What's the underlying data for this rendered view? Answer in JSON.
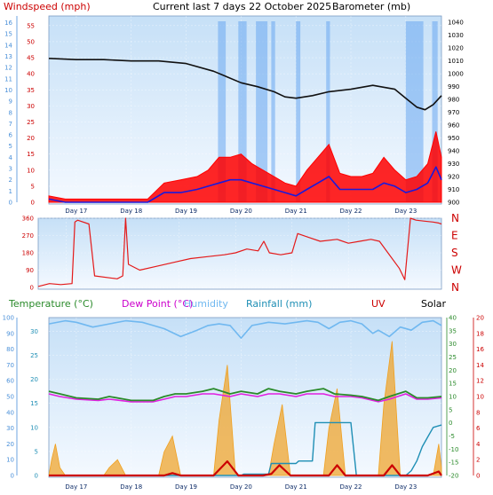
{
  "header": {
    "windspeed_label": "Windspeed (mph)",
    "title": "Current last 7 days 22 October 2025",
    "barometer_label": "Barometer (mb)"
  },
  "legend2": {
    "temperature": "Temperature (°C)",
    "dew_point": "Dew Point (°C)",
    "humidity": "Humidity",
    "rainfall": "Rainfall (mm)",
    "uv": "UV",
    "solar": "Solar"
  },
  "colors": {
    "wind_gust": "#ff0000",
    "wind_avg": "#1a1adc",
    "barometer": "#111111",
    "wind_dir": "#e41a1a",
    "temperature": "#2a8a2a",
    "dew_point": "#e020e0",
    "humidity": "#70b8f0",
    "rainfall": "#1f8fb5",
    "uv": "#cc0000",
    "solar": "#f0a020",
    "sun_bars": "#6aa8f0",
    "panel_top": "#c6e0f7",
    "panel_bottom": "#f4f9ff"
  },
  "chart_data": [
    {
      "type": "line",
      "name_hint": "wind-baro",
      "x_tick_labels": [
        "Day 17",
        "Day 18",
        "Day 19",
        "Day 20",
        "Day 21",
        "Day 22",
        "Day 23"
      ],
      "left_axis_mph_ticks": [
        "0",
        "5",
        "10",
        "15",
        "20",
        "25",
        "30",
        "35",
        "40",
        "45",
        "50",
        "55"
      ],
      "left_outer_ticks": [
        "0",
        "1",
        "2",
        "3",
        "4",
        "5",
        "6",
        "7",
        "8",
        "9",
        "10",
        "11",
        "12",
        "13",
        "14",
        "15",
        "16"
      ],
      "right_axis_mb_ticks": [
        "900",
        "910",
        "920",
        "930",
        "940",
        "950",
        "960",
        "970",
        "980",
        "990",
        "1000",
        "1010",
        "1020",
        "1030",
        "1040"
      ],
      "ylim_mph": [
        0,
        58
      ],
      "ylim_mb": [
        900,
        1045
      ],
      "x_days": [
        16.5,
        23.65
      ],
      "series": [
        {
          "key": "barometer",
          "unit": "mb",
          "x": [
            16.5,
            17.0,
            17.5,
            18.0,
            18.5,
            19.0,
            19.5,
            20.0,
            20.3,
            20.6,
            20.8,
            21.0,
            21.3,
            21.6,
            22.0,
            22.4,
            22.8,
            23.0,
            23.2,
            23.35,
            23.5,
            23.65
          ],
          "values": [
            1012,
            1011,
            1011,
            1010,
            1010,
            1008,
            1002,
            993,
            990,
            986,
            982,
            981,
            983,
            986,
            988,
            991,
            988,
            981,
            974,
            972,
            976,
            983
          ]
        },
        {
          "key": "wind_gust",
          "unit": "mph",
          "x": [
            16.5,
            16.8,
            17.0,
            17.5,
            18.0,
            18.3,
            18.6,
            18.9,
            19.2,
            19.4,
            19.6,
            19.8,
            20.0,
            20.2,
            20.4,
            20.6,
            20.8,
            21.0,
            21.2,
            21.4,
            21.6,
            21.8,
            22.0,
            22.2,
            22.4,
            22.6,
            22.8,
            23.0,
            23.2,
            23.4,
            23.55,
            23.65
          ],
          "values": [
            2,
            1,
            1,
            1,
            1,
            1,
            6,
            7,
            8,
            10,
            14,
            14,
            15,
            12,
            10,
            8,
            6,
            5,
            10,
            14,
            18,
            9,
            8,
            8,
            9,
            14,
            10,
            7,
            8,
            12,
            22,
            14
          ]
        },
        {
          "key": "wind_avg",
          "unit": "mph",
          "x": [
            16.5,
            16.8,
            17.0,
            17.5,
            18.0,
            18.3,
            18.6,
            18.9,
            19.2,
            19.4,
            19.6,
            19.8,
            20.0,
            20.2,
            20.4,
            20.6,
            20.8,
            21.0,
            21.2,
            21.4,
            21.6,
            21.8,
            22.0,
            22.2,
            22.4,
            22.6,
            22.8,
            23.0,
            23.2,
            23.4,
            23.55,
            23.65
          ],
          "values": [
            1,
            0,
            0,
            0,
            0,
            0,
            3,
            3,
            4,
            5,
            6,
            7,
            7,
            6,
            5,
            4,
            3,
            2,
            4,
            6,
            8,
            4,
            4,
            4,
            4,
            6,
            5,
            3,
            4,
            6,
            11,
            7
          ]
        }
      ],
      "sunshine_periods_days": [
        [
          19.58,
          19.72
        ],
        [
          19.95,
          20.1
        ],
        [
          20.27,
          20.48
        ],
        [
          20.55,
          20.62
        ],
        [
          21.0,
          21.08
        ],
        [
          21.55,
          21.62
        ],
        [
          23.0,
          23.32
        ],
        [
          23.48,
          23.58
        ]
      ]
    },
    {
      "type": "scatter",
      "name_hint": "wind-direction",
      "left_ticks": [
        "0",
        "90",
        "180",
        "270",
        "360"
      ],
      "right_labels": [
        "N",
        "W",
        "S",
        "E",
        "N"
      ],
      "ylim": [
        0,
        360
      ],
      "x_days": [
        16.5,
        23.65
      ],
      "x": [
        16.5,
        16.7,
        16.9,
        17.1,
        17.15,
        17.2,
        17.4,
        17.5,
        17.9,
        18.0,
        18.05,
        18.1,
        18.3,
        18.6,
        18.9,
        19.2,
        19.5,
        19.8,
        20.0,
        20.2,
        20.4,
        20.5,
        20.6,
        20.8,
        21.0,
        21.1,
        21.3,
        21.5,
        21.8,
        22.0,
        22.2,
        22.4,
        22.55,
        22.7,
        22.9,
        23.0,
        23.1,
        23.2,
        23.35,
        23.5,
        23.6,
        23.65
      ],
      "values": [
        5,
        20,
        15,
        20,
        340,
        350,
        330,
        60,
        45,
        60,
        360,
        120,
        90,
        110,
        130,
        150,
        160,
        170,
        180,
        200,
        190,
        240,
        180,
        170,
        180,
        280,
        260,
        240,
        250,
        230,
        240,
        250,
        240,
        180,
        100,
        40,
        360,
        350,
        345,
        340,
        335,
        330
      ]
    },
    {
      "type": "line",
      "name_hint": "temp-rain-uv-solar",
      "x_tick_labels": [
        "Day 17",
        "Day 18",
        "Day 19",
        "Day 20",
        "Day 21",
        "Day 22",
        "Day 23"
      ],
      "left_axis_ticks": [
        "0",
        "5",
        "10",
        "15",
        "20",
        "25",
        "30"
      ],
      "left_outer_ticks": [
        "0",
        "10",
        "20",
        "30",
        "40",
        "50",
        "60",
        "70",
        "80",
        "90",
        "100"
      ],
      "right_axis_temp_ticks": [
        "-20",
        "-15",
        "-10",
        "-5",
        "0",
        "5",
        "10",
        "15",
        "20",
        "25",
        "30",
        "35",
        "40"
      ],
      "right_axis_uv_ticks": [
        "0",
        "2",
        "4",
        "6",
        "8",
        "10",
        "12",
        "14",
        "16",
        "18",
        "20"
      ],
      "x_days": [
        16.5,
        23.65
      ],
      "series": [
        {
          "key": "temperature",
          "unit": "°C",
          "x": [
            16.5,
            16.7,
            17.0,
            17.4,
            17.6,
            18.0,
            18.4,
            18.6,
            18.8,
            19.0,
            19.3,
            19.5,
            19.8,
            20.0,
            20.3,
            20.5,
            20.7,
            21.0,
            21.2,
            21.5,
            21.7,
            22.0,
            22.2,
            22.5,
            22.7,
            23.0,
            23.2,
            23.4,
            23.65
          ],
          "values": [
            12,
            11,
            9.5,
            9,
            10,
            8.5,
            8.5,
            10,
            11,
            11,
            12,
            13,
            11,
            12,
            11,
            13,
            12,
            11,
            12,
            13,
            11,
            10.5,
            10,
            8.5,
            10,
            12,
            9.5,
            9.5,
            10
          ]
        },
        {
          "key": "dew_point",
          "unit": "°C",
          "x": [
            16.5,
            16.7,
            17.0,
            17.4,
            17.6,
            18.0,
            18.4,
            18.6,
            18.8,
            19.0,
            19.3,
            19.5,
            19.8,
            20.0,
            20.3,
            20.5,
            20.7,
            21.0,
            21.2,
            21.5,
            21.7,
            22.0,
            22.2,
            22.5,
            22.7,
            23.0,
            23.2,
            23.4,
            23.65
          ],
          "values": [
            11,
            10,
            9,
            8.5,
            9,
            8,
            8,
            9,
            10,
            10,
            11,
            11,
            10,
            11,
            10,
            11,
            11,
            10,
            11,
            11,
            10,
            10,
            9.5,
            8,
            9,
            11,
            9,
            9,
            9.5
          ]
        },
        {
          "key": "humidity",
          "unit": "%",
          "x": [
            16.5,
            16.8,
            17.0,
            17.3,
            17.6,
            17.9,
            18.2,
            18.4,
            18.6,
            18.9,
            19.2,
            19.4,
            19.6,
            19.8,
            20.0,
            20.2,
            20.5,
            20.8,
            21.0,
            21.2,
            21.4,
            21.6,
            21.8,
            22.0,
            22.2,
            22.4,
            22.5,
            22.7,
            22.9,
            23.1,
            23.3,
            23.5,
            23.65
          ],
          "values": [
            96,
            98,
            97,
            94,
            96,
            98,
            97,
            95,
            93,
            88,
            92,
            95,
            96,
            95,
            87,
            95,
            97,
            96,
            97,
            98,
            97,
            93,
            97,
            98,
            96,
            90,
            92,
            88,
            94,
            92,
            97,
            98,
            95
          ]
        },
        {
          "key": "rainfall",
          "unit": "mm",
          "x": [
            16.5,
            19.8,
            20.0,
            20.05,
            20.5,
            20.55,
            21.0,
            21.05,
            21.3,
            21.35,
            22.0,
            22.1,
            22.5,
            22.9,
            23.0,
            23.1,
            23.2,
            23.3,
            23.4,
            23.5,
            23.65
          ],
          "values": [
            0,
            0,
            0,
            0.3,
            0.3,
            2.5,
            2.5,
            3,
            3,
            11,
            11,
            0,
            0,
            0,
            0,
            1,
            3,
            6,
            8,
            10,
            10.5
          ]
        },
        {
          "key": "uv",
          "unit": "index",
          "x": [
            16.5,
            17.5,
            18.6,
            18.75,
            18.9,
            19.1,
            19.5,
            19.75,
            19.95,
            20.4,
            20.55,
            20.7,
            20.9,
            21.4,
            21.6,
            21.75,
            21.9,
            22.4,
            22.6,
            22.75,
            22.9,
            23.4,
            23.6,
            23.65
          ],
          "values": [
            0,
            0,
            0,
            0.3,
            0,
            0,
            0,
            1.8,
            0,
            0,
            0.2,
            1.3,
            0,
            0,
            0,
            1.3,
            0,
            0,
            0,
            1.3,
            0,
            0,
            0.5,
            0
          ]
        },
        {
          "key": "solar",
          "unit": "relative",
          "x": [
            16.5,
            16.55,
            16.62,
            16.7,
            16.8,
            17.5,
            17.6,
            17.75,
            17.9,
            18.5,
            18.6,
            18.75,
            18.9,
            19.5,
            19.6,
            19.75,
            19.9,
            20.5,
            20.6,
            20.75,
            20.9,
            21.5,
            21.6,
            21.75,
            21.9,
            22.5,
            22.6,
            22.75,
            22.9,
            23.5,
            23.6,
            23.65
          ],
          "values": [
            0,
            2,
            4,
            1,
            0,
            0,
            1,
            2,
            0,
            0,
            3,
            5,
            0,
            0,
            7,
            14,
            0,
            0,
            4,
            9,
            0,
            0,
            6,
            11,
            0,
            0,
            9,
            17,
            0,
            0,
            4,
            1
          ]
        }
      ]
    }
  ]
}
